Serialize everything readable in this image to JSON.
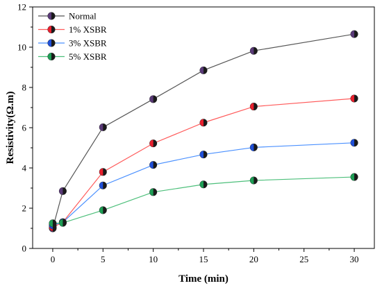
{
  "chart_data": {
    "type": "line",
    "title": "",
    "xlabel": "Time (min)",
    "ylabel": "Resistivity(Ω.m)",
    "x": [
      0,
      1,
      5,
      10,
      15,
      20,
      30
    ],
    "xlim": [
      -2,
      32
    ],
    "ylim": [
      0,
      12
    ],
    "xticks": [
      0,
      5,
      10,
      15,
      20,
      25,
      30
    ],
    "yticks": [
      0,
      2,
      4,
      6,
      8,
      10,
      12
    ],
    "grid": false,
    "legend_position": "top-left",
    "series": [
      {
        "name": "Normal",
        "color": "#555555",
        "marker_color": "#5a3a78",
        "values": [
          1.0,
          2.85,
          6.02,
          7.42,
          8.85,
          9.82,
          10.65
        ]
      },
      {
        "name": "1% XSBR",
        "color": "#ff5a5a",
        "marker_color": "#e8202e",
        "values": [
          1.05,
          1.3,
          3.8,
          5.22,
          6.25,
          7.05,
          7.45
        ]
      },
      {
        "name": "3% XSBR",
        "color": "#4a90ff",
        "marker_color": "#1f4fd8",
        "values": [
          1.15,
          1.3,
          3.13,
          4.15,
          4.67,
          5.02,
          5.25
        ]
      },
      {
        "name": "5% XSBR",
        "color": "#4cbf7a",
        "marker_color": "#1e9e55",
        "values": [
          1.25,
          1.27,
          1.9,
          2.8,
          3.18,
          3.38,
          3.55
        ]
      }
    ]
  }
}
